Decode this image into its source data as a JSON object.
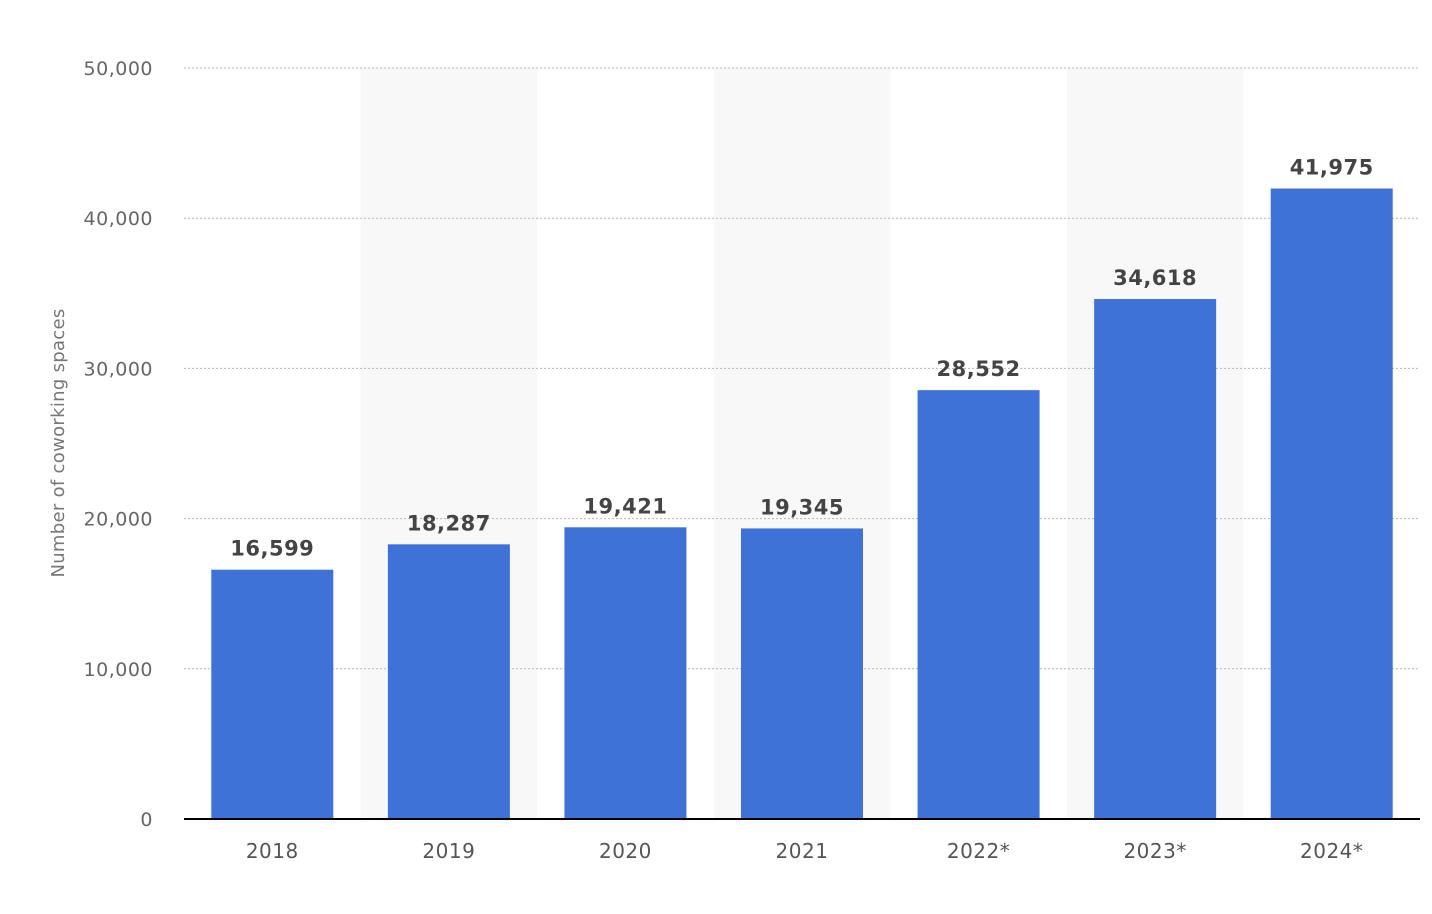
{
  "chart_data": {
    "type": "bar",
    "categories": [
      "2018",
      "2019",
      "2020",
      "2021",
      "2022*",
      "2023*",
      "2024*"
    ],
    "values": [
      16599,
      18287,
      19421,
      19345,
      28552,
      34618,
      41975
    ],
    "value_labels": [
      "16,599",
      "18,287",
      "19,421",
      "19,345",
      "28,552",
      "34,618",
      "41,975"
    ],
    "title": "",
    "xlabel": "",
    "ylabel": "Number of coworking spaces",
    "ylim": [
      0,
      50000
    ],
    "yticks": [
      0,
      10000,
      20000,
      30000,
      40000,
      50000
    ],
    "ytick_labels": [
      "0",
      "10,000",
      "20,000",
      "30,000",
      "40,000",
      "50,000"
    ],
    "grid": true,
    "alternating_bands": true,
    "bar_color": "#3f72d6",
    "legend": "none"
  }
}
